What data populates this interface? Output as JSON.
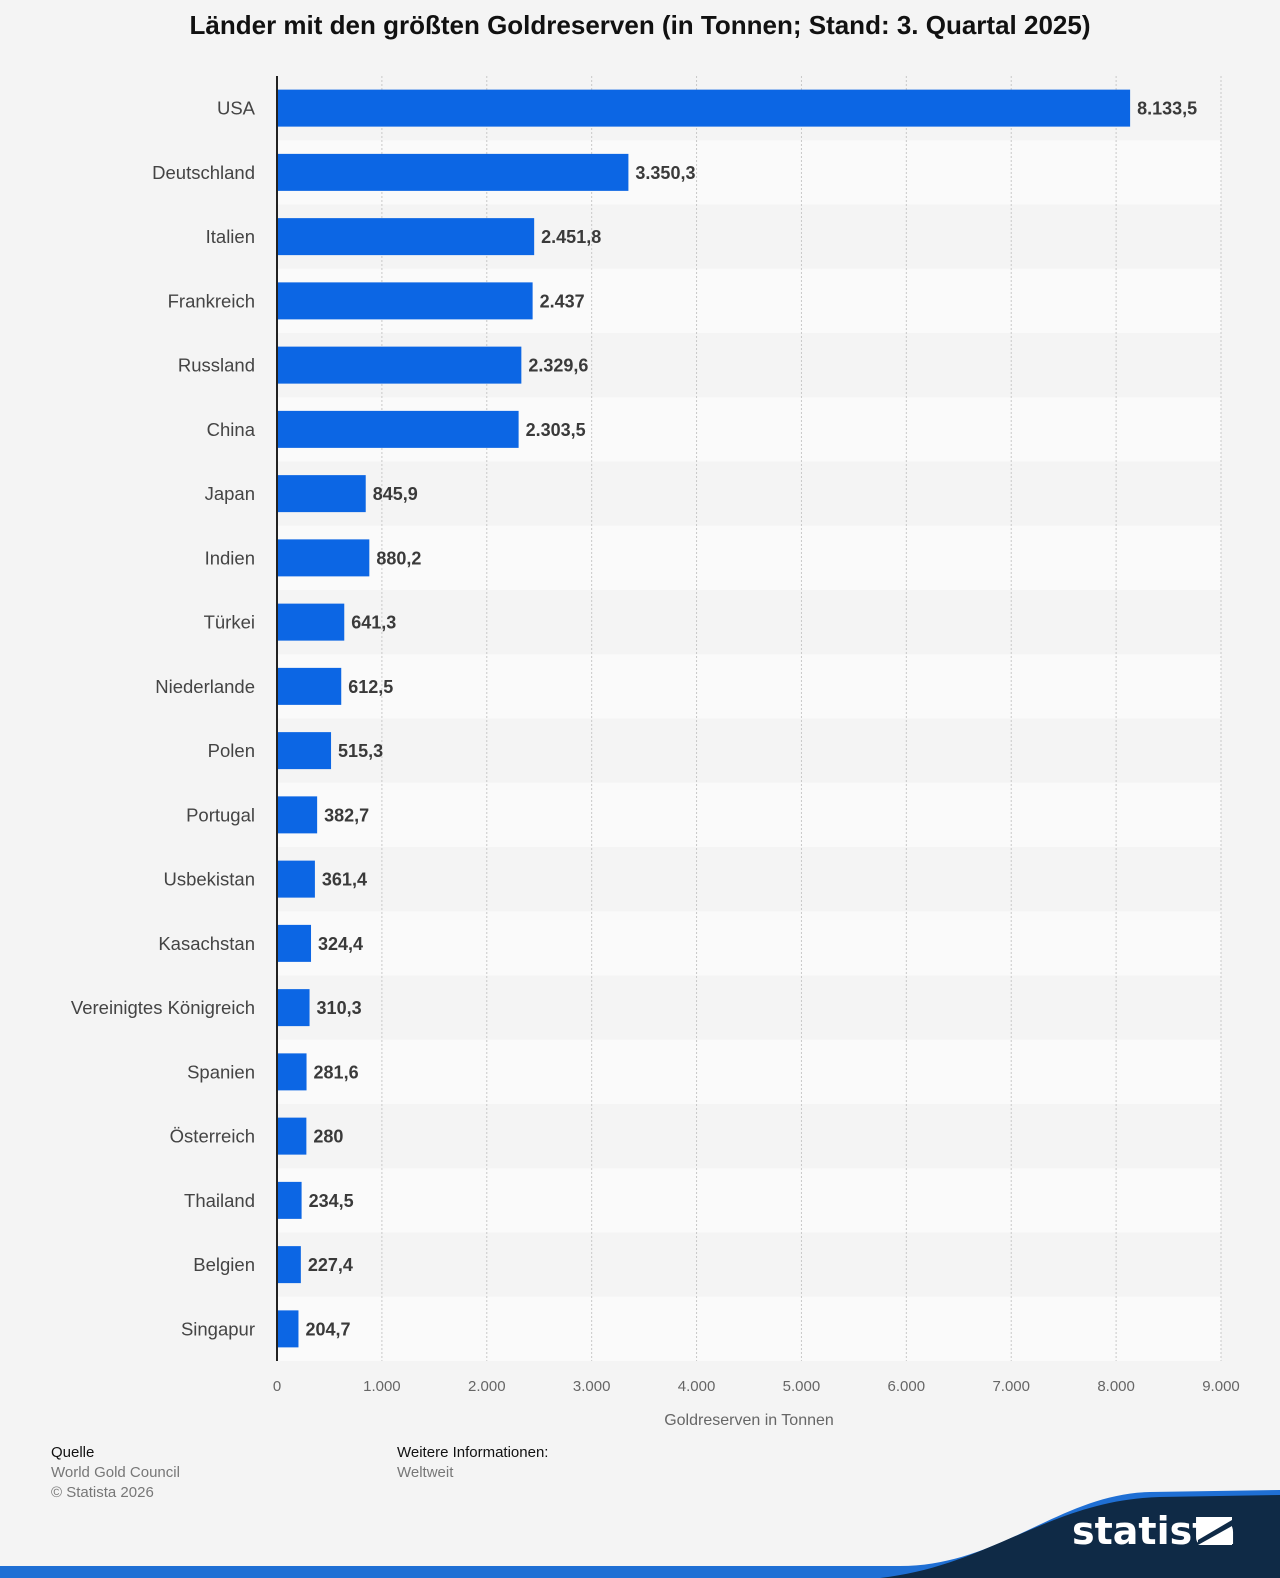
{
  "chart_data": {
    "type": "bar",
    "orientation": "horizontal",
    "title": "Länder mit den größten Goldreserven (in Tonnen; Stand: 3. Quartal 2025)",
    "xlabel": "Goldreserven in Tonnen",
    "ylabel": "",
    "xlim": [
      0,
      9000
    ],
    "grid": true,
    "series": [
      {
        "name": "Goldreserven in Tonnen",
        "color": "#0c66e4",
        "points": [
          {
            "category": "USA",
            "value": 8133.5,
            "label": "8.133,5"
          },
          {
            "category": "Deutschland",
            "value": 3350.3,
            "label": "3.350,3"
          },
          {
            "category": "Italien",
            "value": 2451.8,
            "label": "2.451,8"
          },
          {
            "category": "Frankreich",
            "value": 2437,
            "label": "2.437"
          },
          {
            "category": "Russland",
            "value": 2329.6,
            "label": "2.329,6"
          },
          {
            "category": "China",
            "value": 2303.5,
            "label": "2.303,5"
          },
          {
            "category": "Japan",
            "value": 845.9,
            "label": "845,9"
          },
          {
            "category": "Indien",
            "value": 880.2,
            "label": "880,2"
          },
          {
            "category": "Türkei",
            "value": 641.3,
            "label": "641,3"
          },
          {
            "category": "Niederlande",
            "value": 612.5,
            "label": "612,5"
          },
          {
            "category": "Polen",
            "value": 515.3,
            "label": "515,3"
          },
          {
            "category": "Portugal",
            "value": 382.7,
            "label": "382,7"
          },
          {
            "category": "Usbekistan",
            "value": 361.4,
            "label": "361,4"
          },
          {
            "category": "Kasachstan",
            "value": 324.4,
            "label": "324,4"
          },
          {
            "category": "Vereinigtes Königreich",
            "value": 310.3,
            "label": "310,3"
          },
          {
            "category": "Spanien",
            "value": 281.6,
            "label": "281,6"
          },
          {
            "category": "Österreich",
            "value": 280,
            "label": "280"
          },
          {
            "category": "Thailand",
            "value": 234.5,
            "label": "234,5"
          },
          {
            "category": "Belgien",
            "value": 227.4,
            "label": "227,4"
          },
          {
            "category": "Singapur",
            "value": 204.7,
            "label": "204,7"
          }
        ]
      }
    ],
    "ticks": [
      {
        "value": 0,
        "label": "0"
      },
      {
        "value": 1000,
        "label": "1.000"
      },
      {
        "value": 2000,
        "label": "2.000"
      },
      {
        "value": 3000,
        "label": "3.000"
      },
      {
        "value": 4000,
        "label": "4.000"
      },
      {
        "value": 5000,
        "label": "5.000"
      },
      {
        "value": 6000,
        "label": "6.000"
      },
      {
        "value": 7000,
        "label": "7.000"
      },
      {
        "value": 8000,
        "label": "8.000"
      },
      {
        "value": 9000,
        "label": "9.000"
      }
    ]
  },
  "footer": {
    "source_heading": "Quelle",
    "source_name": "World Gold Council",
    "copyright": "© Statista 2026",
    "info_heading": "Weitere Informationen:",
    "info_value": "Weltweit"
  },
  "brand": {
    "logo_text": "statista",
    "logo_dark": "#0f2a46",
    "logo_blue": "#1f6fd4"
  }
}
